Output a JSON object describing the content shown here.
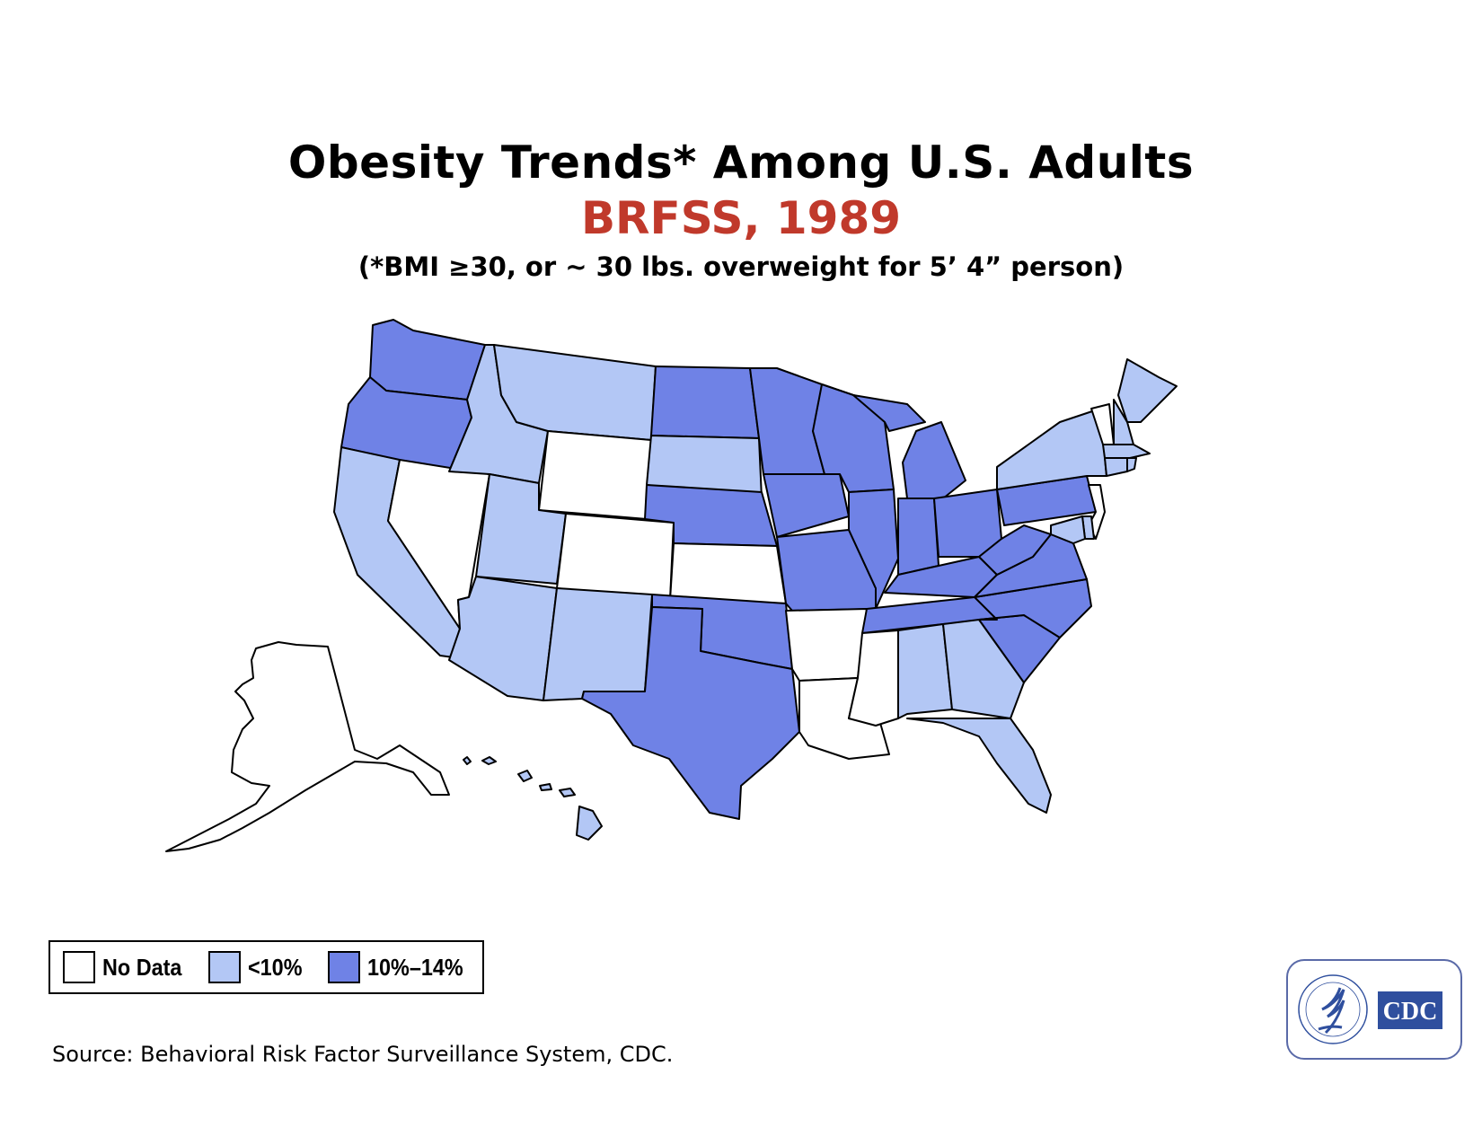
{
  "title": "Obesity Trends* Among U.S. Adults",
  "subtitle": "BRFSS, 1989",
  "note": "(*BMI ≥30, or ~ 30 lbs. overweight for 5’ 4” person)",
  "colors": {
    "title": "#000000",
    "subtitle": "#c0392b",
    "no_data": "#ffffff",
    "lt10": "#b3c7f5",
    "10to14": "#6f82e6",
    "cdc_blue": "#2f4f9e"
  },
  "legend": {
    "items": [
      {
        "label": "No Data",
        "category": "no_data"
      },
      {
        "label": "<10%",
        "category": "lt10"
      },
      {
        "label": "10%–14%",
        "category": "10to14"
      }
    ]
  },
  "map_data": {
    "categories": [
      "No Data",
      "<10%",
      "10%–14%"
    ],
    "states": {
      "no_data": [
        "NV",
        "WY",
        "CO",
        "KS",
        "AR",
        "LA",
        "MS",
        "VT",
        "NJ",
        "AK"
      ],
      "lt10": [
        "CA",
        "ID",
        "MT",
        "UT",
        "AZ",
        "NM",
        "SD",
        "AL",
        "GA",
        "FL",
        "NY",
        "ME",
        "NH",
        "MA",
        "CT",
        "RI",
        "MD",
        "DE",
        "HI"
      ],
      "10to14": [
        "WA",
        "OR",
        "ND",
        "MN",
        "NE",
        "IA",
        "MO",
        "OK",
        "TX",
        "WI",
        "IL",
        "MI",
        "IN",
        "OH",
        "KY",
        "TN",
        "PA",
        "WV",
        "VA",
        "NC",
        "SC"
      ]
    }
  },
  "source": "Source: Behavioral Risk Factor Surveillance System, CDC.",
  "logo": {
    "text": "CDC",
    "icon": "hhs-eagle-icon"
  }
}
